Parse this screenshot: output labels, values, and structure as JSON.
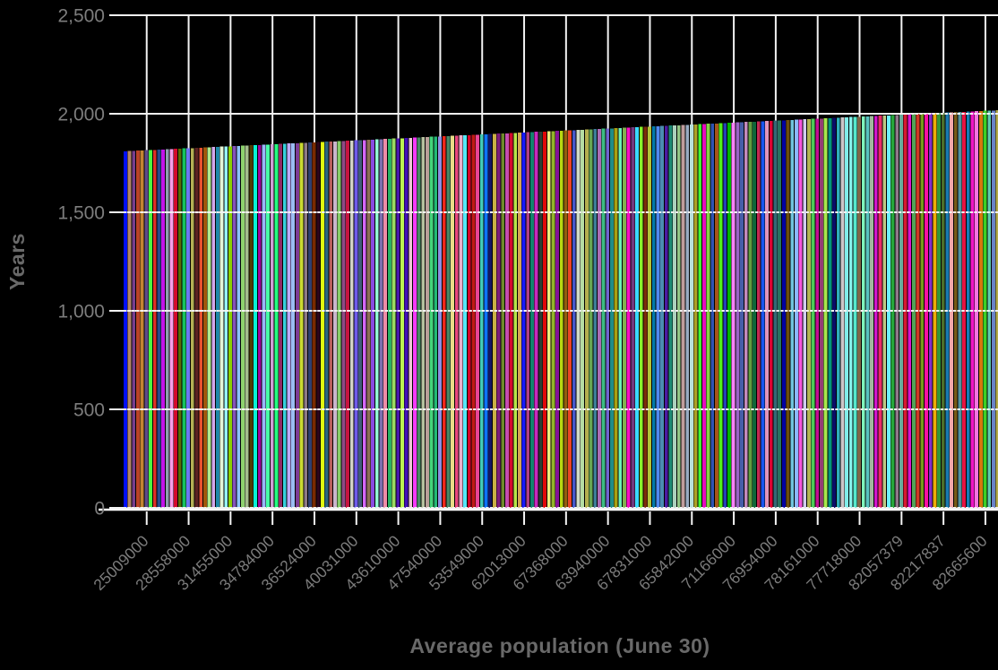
{
  "chart_data": {
    "type": "bar",
    "title": "",
    "xlabel": "Average population (June 30)",
    "ylabel": "Years",
    "ylim": [
      0,
      2500
    ],
    "grid": true,
    "legend": "none",
    "background_color": "#000000",
    "grid_color": "#f2f2f2",
    "tick_text_color": "#7b7b7b",
    "axis_title_color": "#696969",
    "bar_color_mode": "random color per bar",
    "bar_color_seed": 7,
    "y_tick_values": [
      0,
      500,
      1000,
      1500,
      2000,
      2500
    ],
    "y_tick_labels": [
      "0",
      "500",
      "1,000",
      "1,500",
      "2,000",
      "2,500"
    ],
    "x_tick_labels": [
      "25009000",
      "28558000",
      "31455000",
      "34784000",
      "36524000",
      "40031000",
      "43610000",
      "47540000",
      "53549000",
      "62013000",
      "67368000",
      "63940000",
      "67831000",
      "65842000",
      "71166000",
      "76954000",
      "78161000",
      "77718000",
      "82057379",
      "82217837",
      "82665600"
    ],
    "x_tick_first_bar_index": 5,
    "x_tick_every": 10,
    "bars": {
      "metric": "year",
      "first_value": 1810,
      "last_value": 2020,
      "step": 1,
      "count": 211
    },
    "labeled_points": [
      {
        "population": "25009000",
        "year": 1815
      },
      {
        "population": "28558000",
        "year": 1825
      },
      {
        "population": "31455000",
        "year": 1835
      },
      {
        "population": "34784000",
        "year": 1845
      },
      {
        "population": "36524000",
        "year": 1855
      },
      {
        "population": "40031000",
        "year": 1865
      },
      {
        "population": "43610000",
        "year": 1875
      },
      {
        "population": "47540000",
        "year": 1885
      },
      {
        "population": "53549000",
        "year": 1895
      },
      {
        "population": "62013000",
        "year": 1905
      },
      {
        "population": "67368000",
        "year": 1915
      },
      {
        "population": "63940000",
        "year": 1925
      },
      {
        "population": "67831000",
        "year": 1935
      },
      {
        "population": "65842000",
        "year": 1945
      },
      {
        "population": "71166000",
        "year": 1955
      },
      {
        "population": "76954000",
        "year": 1965
      },
      {
        "population": "78161000",
        "year": 1975
      },
      {
        "population": "77718000",
        "year": 1985
      },
      {
        "population": "82057379",
        "year": 1995
      },
      {
        "population": "82217837",
        "year": 2005
      },
      {
        "population": "82665600",
        "year": 2015
      }
    ]
  }
}
